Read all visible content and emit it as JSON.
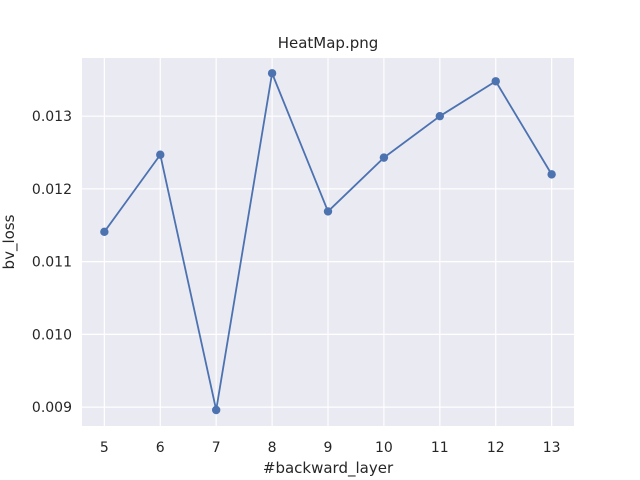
{
  "chart_data": {
    "type": "line",
    "title": "HeatMap.png",
    "xlabel": "#backward_layer",
    "ylabel": "bv_loss",
    "x": [
      5,
      6,
      7,
      8,
      9,
      10,
      11,
      12,
      13
    ],
    "series": [
      {
        "values": [
          0.01141,
          0.01247,
          0.00896,
          0.01359,
          0.01169,
          0.01243,
          0.013,
          0.01348,
          0.0122
        ]
      }
    ],
    "xticks": [
      "5",
      "6",
      "7",
      "8",
      "9",
      "10",
      "11",
      "12",
      "13"
    ],
    "yticks": [
      "0.009",
      "0.010",
      "0.011",
      "0.012",
      "0.013"
    ],
    "ytick_values": [
      0.009,
      0.01,
      0.011,
      0.012,
      0.013
    ],
    "xlim": [
      4.6,
      13.4
    ],
    "ylim": [
      0.00874,
      0.0138
    ],
    "grid": true,
    "colors": {
      "background": "#eaeaf2",
      "grid": "#ffffff",
      "line": "#4c72b0",
      "text": "#262626"
    }
  }
}
